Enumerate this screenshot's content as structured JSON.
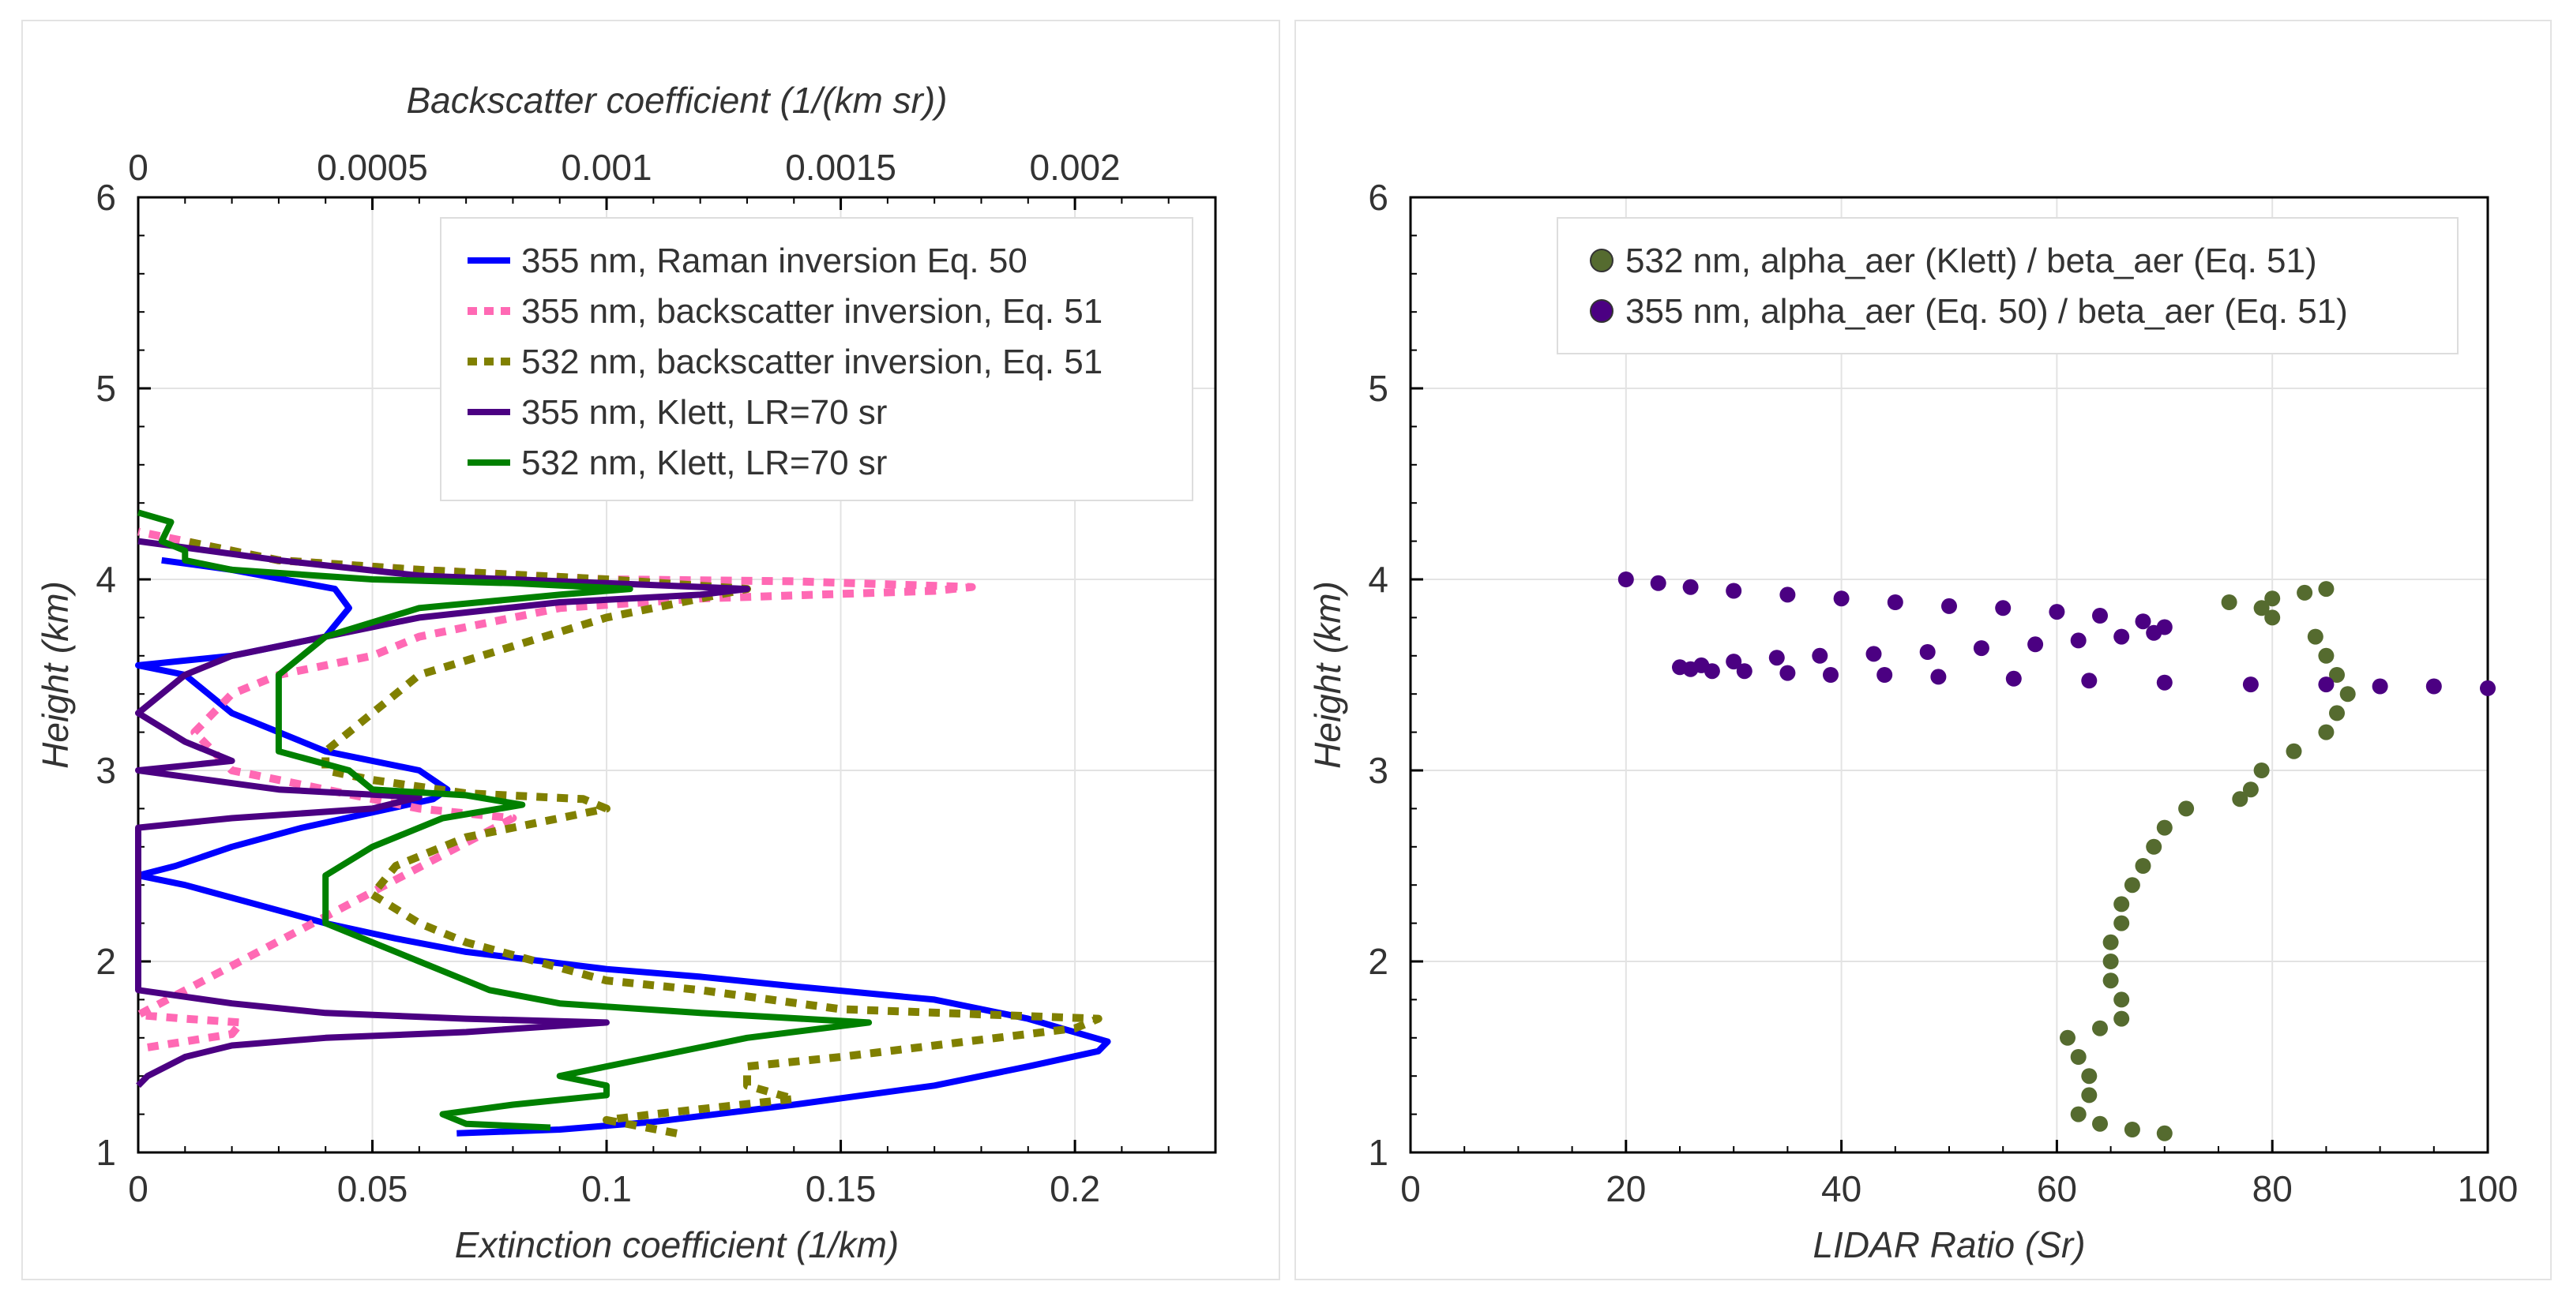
{
  "chart_data": [
    {
      "type": "line",
      "x_axis_bottom": {
        "label": "Extinction coefficient (1/km)",
        "range": [
          0,
          0.23
        ],
        "ticks": [
          0,
          0.05,
          0.1,
          0.15,
          0.2
        ],
        "tick_labels": [
          "0",
          "0.05",
          "0.1",
          "0.15",
          "0.2"
        ]
      },
      "x_axis_top": {
        "label": "Backscatter coefficient (1/(km sr))",
        "range": [
          0,
          0.0023
        ],
        "ticks": [
          0,
          0.0005,
          0.001,
          0.0015,
          0.002
        ],
        "tick_labels": [
          "0",
          "0.0005",
          "0.001",
          "0.0015",
          "0.002"
        ]
      },
      "y_axis": {
        "label": "Height (km)",
        "range": [
          1,
          6
        ],
        "ticks": [
          1,
          2,
          3,
          4,
          5,
          6
        ],
        "tick_labels": [
          "1",
          "2",
          "3",
          "4",
          "5",
          "6"
        ]
      },
      "grid": true,
      "legend_position": "top-right",
      "series": [
        {
          "name": "355 nm, Raman inversion Eq. 50",
          "axis": "extinction",
          "color": "#0000ff",
          "dash": "solid",
          "points": [
            [
              0.068,
              1.1
            ],
            [
              0.09,
              1.12
            ],
            [
              0.11,
              1.16
            ],
            [
              0.14,
              1.25
            ],
            [
              0.17,
              1.35
            ],
            [
              0.19,
              1.45
            ],
            [
              0.205,
              1.53
            ],
            [
              0.207,
              1.58
            ],
            [
              0.19,
              1.7
            ],
            [
              0.17,
              1.8
            ],
            [
              0.14,
              1.87
            ],
            [
              0.12,
              1.92
            ],
            [
              0.1,
              1.96
            ],
            [
              0.07,
              2.05
            ],
            [
              0.055,
              2.12
            ],
            [
              0.04,
              2.2
            ],
            [
              0.025,
              2.3
            ],
            [
              0.01,
              2.4
            ],
            [
              0.0,
              2.45
            ],
            [
              0.008,
              2.5
            ],
            [
              0.02,
              2.6
            ],
            [
              0.035,
              2.7
            ],
            [
              0.05,
              2.78
            ],
            [
              0.063,
              2.85
            ],
            [
              0.066,
              2.9
            ],
            [
              0.06,
              3.0
            ],
            [
              0.05,
              3.05
            ],
            [
              0.04,
              3.1
            ],
            [
              0.03,
              3.2
            ],
            [
              0.02,
              3.3
            ],
            [
              0.015,
              3.4
            ],
            [
              0.01,
              3.5
            ],
            [
              0.0,
              3.55
            ],
            [
              0.02,
              3.6
            ],
            [
              0.04,
              3.7
            ],
            [
              0.045,
              3.85
            ],
            [
              0.042,
              3.95
            ],
            [
              0.02,
              4.05
            ],
            [
              0.005,
              4.1
            ]
          ]
        },
        {
          "name": "355 nm, backscatter inversion, Eq. 51",
          "axis": "backscatter",
          "color": "#ff69b4",
          "dash": "dotted",
          "points": [
            [
              2e-05,
              1.55
            ],
            [
              0.0002,
              1.62
            ],
            [
              0.00022,
              1.68
            ],
            [
              0.0001,
              1.7
            ],
            [
              0.0,
              1.72
            ],
            [
              0.0008,
              2.75
            ],
            [
              0.0006,
              2.8
            ],
            [
              0.0004,
              2.9
            ],
            [
              0.0002,
              3.0
            ],
            [
              0.00012,
              3.2
            ],
            [
              0.0002,
              3.4
            ],
            [
              0.0003,
              3.5
            ],
            [
              0.0005,
              3.6
            ],
            [
              0.0006,
              3.7
            ],
            [
              0.0009,
              3.85
            ],
            [
              0.0012,
              3.9
            ],
            [
              0.0017,
              3.94
            ],
            [
              0.00178,
              3.96
            ],
            [
              0.0014,
              3.99
            ],
            [
              0.001,
              4.0
            ],
            [
              0.0006,
              4.05
            ],
            [
              0.0003,
              4.1
            ],
            [
              0.0,
              4.25
            ]
          ]
        },
        {
          "name": "532 nm, backscatter inversion, Eq. 51",
          "axis": "backscatter",
          "color": "#808000",
          "dash": "dotted",
          "points": [
            [
              0.00115,
              1.1
            ],
            [
              0.001,
              1.17
            ],
            [
              0.0011,
              1.2
            ],
            [
              0.0014,
              1.28
            ],
            [
              0.0013,
              1.35
            ],
            [
              0.0013,
              1.45
            ],
            [
              0.0015,
              1.5
            ],
            [
              0.002,
              1.65
            ],
            [
              0.00205,
              1.7
            ],
            [
              0.0015,
              1.75
            ],
            [
              0.0012,
              1.85
            ],
            [
              0.001,
              1.9
            ],
            [
              0.00085,
              2.0
            ],
            [
              0.0007,
              2.1
            ],
            [
              0.0006,
              2.2
            ],
            [
              0.0005,
              2.35
            ],
            [
              0.00055,
              2.5
            ],
            [
              0.0007,
              2.65
            ],
            [
              0.001,
              2.8
            ],
            [
              0.00095,
              2.85
            ],
            [
              0.0007,
              2.88
            ],
            [
              0.0005,
              2.95
            ],
            [
              0.0004,
              3.0
            ],
            [
              0.0004,
              3.1
            ],
            [
              0.0005,
              3.3
            ],
            [
              0.0006,
              3.5
            ],
            [
              0.0008,
              3.65
            ],
            [
              0.001,
              3.8
            ],
            [
              0.0012,
              3.9
            ],
            [
              0.0013,
              3.95
            ],
            [
              0.001,
              4.0
            ],
            [
              0.0006,
              4.05
            ],
            [
              0.0003,
              4.1
            ],
            [
              0.0001,
              4.2
            ]
          ]
        },
        {
          "name": "355 nm, Klett, LR=70 sr",
          "axis": "extinction",
          "color": "#4b0082",
          "dash": "solid",
          "points": [
            [
              0.0,
              1.35
            ],
            [
              0.002,
              1.4
            ],
            [
              0.01,
              1.5
            ],
            [
              0.02,
              1.56
            ],
            [
              0.04,
              1.6
            ],
            [
              0.07,
              1.63
            ],
            [
              0.1,
              1.68
            ],
            [
              0.07,
              1.7
            ],
            [
              0.04,
              1.73
            ],
            [
              0.02,
              1.78
            ],
            [
              0.0,
              1.85
            ],
            [
              0.0,
              2.7
            ],
            [
              0.02,
              2.75
            ],
            [
              0.05,
              2.8
            ],
            [
              0.06,
              2.86
            ],
            [
              0.03,
              2.9
            ],
            [
              0.0,
              3.0
            ],
            [
              0.02,
              3.05
            ],
            [
              0.01,
              3.15
            ],
            [
              0.0,
              3.3
            ],
            [
              0.01,
              3.5
            ],
            [
              0.02,
              3.6
            ],
            [
              0.04,
              3.7
            ],
            [
              0.06,
              3.8
            ],
            [
              0.09,
              3.88
            ],
            [
              0.12,
              3.92
            ],
            [
              0.13,
              3.95
            ],
            [
              0.1,
              3.98
            ],
            [
              0.06,
              4.02
            ],
            [
              0.03,
              4.1
            ],
            [
              0.0,
              4.2
            ]
          ]
        },
        {
          "name": "532 nm, Klett, LR=70 sr",
          "axis": "extinction",
          "color": "#008000",
          "dash": "solid",
          "points": [
            [
              0.088,
              1.13
            ],
            [
              0.07,
              1.15
            ],
            [
              0.065,
              1.2
            ],
            [
              0.08,
              1.25
            ],
            [
              0.1,
              1.3
            ],
            [
              0.1,
              1.35
            ],
            [
              0.09,
              1.4
            ],
            [
              0.1,
              1.45
            ],
            [
              0.11,
              1.5
            ],
            [
              0.13,
              1.6
            ],
            [
              0.156,
              1.68
            ],
            [
              0.12,
              1.73
            ],
            [
              0.09,
              1.78
            ],
            [
              0.075,
              1.85
            ],
            [
              0.07,
              1.9
            ],
            [
              0.06,
              2.0
            ],
            [
              0.05,
              2.1
            ],
            [
              0.04,
              2.2
            ],
            [
              0.04,
              2.3
            ],
            [
              0.04,
              2.45
            ],
            [
              0.05,
              2.6
            ],
            [
              0.065,
              2.75
            ],
            [
              0.082,
              2.82
            ],
            [
              0.07,
              2.87
            ],
            [
              0.05,
              2.9
            ],
            [
              0.045,
              3.0
            ],
            [
              0.03,
              3.1
            ],
            [
              0.03,
              3.3
            ],
            [
              0.03,
              3.5
            ],
            [
              0.04,
              3.7
            ],
            [
              0.06,
              3.85
            ],
            [
              0.09,
              3.92
            ],
            [
              0.105,
              3.95
            ],
            [
              0.08,
              3.98
            ],
            [
              0.05,
              4.0
            ],
            [
              0.02,
              4.05
            ],
            [
              0.01,
              4.1
            ],
            [
              0.01,
              4.15
            ],
            [
              0.005,
              4.2
            ],
            [
              0.007,
              4.3
            ],
            [
              0.0,
              4.35
            ]
          ]
        }
      ]
    },
    {
      "type": "scatter",
      "x_axis": {
        "label": "LIDAR Ratio (Sr)",
        "range": [
          0,
          100
        ],
        "ticks": [
          0,
          20,
          40,
          60,
          80,
          100
        ],
        "tick_labels": [
          "0",
          "20",
          "40",
          "60",
          "80",
          "100"
        ]
      },
      "y_axis": {
        "label": "Height (km)",
        "range": [
          1,
          6
        ],
        "ticks": [
          1,
          2,
          3,
          4,
          5,
          6
        ],
        "tick_labels": [
          "1",
          "2",
          "3",
          "4",
          "5",
          "6"
        ]
      },
      "grid": true,
      "legend_position": "top",
      "series": [
        {
          "name": "532 nm, alpha_aer (Klett) / beta_aer (Eq. 51)",
          "color": "#556b2f",
          "points": [
            [
              70,
              1.1
            ],
            [
              67,
              1.12
            ],
            [
              64,
              1.15
            ],
            [
              62,
              1.2
            ],
            [
              63,
              1.3
            ],
            [
              63,
              1.4
            ],
            [
              62,
              1.5
            ],
            [
              61,
              1.6
            ],
            [
              64,
              1.65
            ],
            [
              66,
              1.7
            ],
            [
              66,
              1.8
            ],
            [
              65,
              1.9
            ],
            [
              65,
              2.0
            ],
            [
              65,
              2.1
            ],
            [
              66,
              2.2
            ],
            [
              66,
              2.3
            ],
            [
              67,
              2.4
            ],
            [
              68,
              2.5
            ],
            [
              69,
              2.6
            ],
            [
              70,
              2.7
            ],
            [
              72,
              2.8
            ],
            [
              77,
              2.85
            ],
            [
              78,
              2.9
            ],
            [
              79,
              3.0
            ],
            [
              82,
              3.1
            ],
            [
              85,
              3.2
            ],
            [
              86,
              3.3
            ],
            [
              87,
              3.4
            ],
            [
              86,
              3.5
            ],
            [
              85,
              3.6
            ],
            [
              84,
              3.7
            ],
            [
              80,
              3.8
            ],
            [
              79,
              3.85
            ],
            [
              76,
              3.88
            ],
            [
              80,
              3.9
            ],
            [
              83,
              3.93
            ],
            [
              85,
              3.95
            ]
          ]
        },
        {
          "name": "355 nm, alpha_aer (Eq. 50) / beta_aer (Eq. 51)",
          "color": "#4b0082",
          "points": [
            [
              100,
              3.43
            ],
            [
              95,
              3.44
            ],
            [
              90,
              3.44
            ],
            [
              85,
              3.45
            ],
            [
              78,
              3.45
            ],
            [
              70,
              3.46
            ],
            [
              63,
              3.47
            ],
            [
              56,
              3.48
            ],
            [
              49,
              3.49
            ],
            [
              44,
              3.5
            ],
            [
              39,
              3.5
            ],
            [
              35,
              3.51
            ],
            [
              31,
              3.52
            ],
            [
              28,
              3.52
            ],
            [
              26,
              3.53
            ],
            [
              25,
              3.54
            ],
            [
              27,
              3.55
            ],
            [
              30,
              3.57
            ],
            [
              34,
              3.59
            ],
            [
              38,
              3.6
            ],
            [
              43,
              3.61
            ],
            [
              48,
              3.62
            ],
            [
              53,
              3.64
            ],
            [
              58,
              3.66
            ],
            [
              62,
              3.68
            ],
            [
              66,
              3.7
            ],
            [
              69,
              3.72
            ],
            [
              70,
              3.75
            ],
            [
              68,
              3.78
            ],
            [
              64,
              3.81
            ],
            [
              60,
              3.83
            ],
            [
              55,
              3.85
            ],
            [
              50,
              3.86
            ],
            [
              45,
              3.88
            ],
            [
              40,
              3.9
            ],
            [
              35,
              3.92
            ],
            [
              30,
              3.94
            ],
            [
              26,
              3.96
            ],
            [
              23,
              3.98
            ],
            [
              20,
              4.0
            ]
          ]
        }
      ]
    }
  ]
}
